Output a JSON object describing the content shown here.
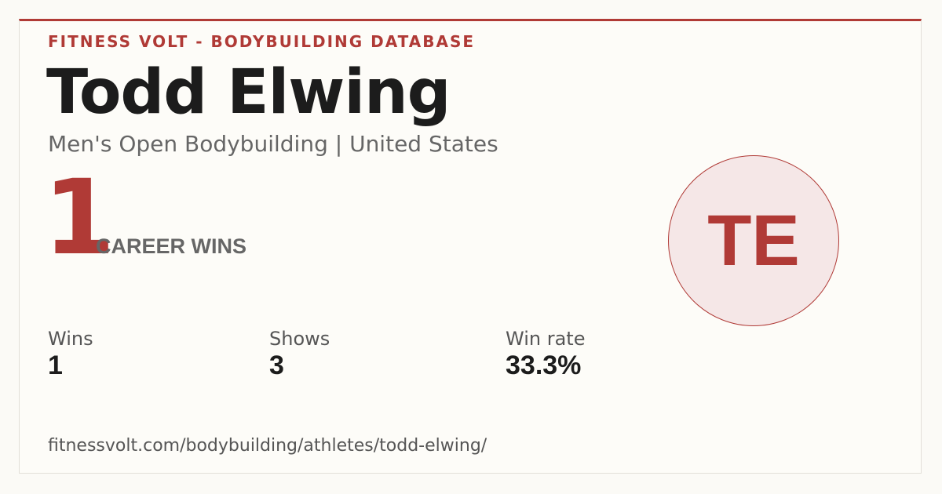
{
  "header": {
    "brand": "FITNESS VOLT - BODYBUILDING DATABASE"
  },
  "athlete": {
    "name": "Todd Elwing",
    "subtitle": "Men's Open Bodybuilding | United States",
    "initials": "TE"
  },
  "career": {
    "wins": "1",
    "label": "CAREER WINS"
  },
  "stats": [
    {
      "label": "Wins",
      "value": "1"
    },
    {
      "label": "Shows",
      "value": "3"
    },
    {
      "label": "Win rate",
      "value": "33.3%"
    }
  ],
  "footer": {
    "url": "fitnessvolt.com/bodybuilding/athletes/todd-elwing/"
  }
}
